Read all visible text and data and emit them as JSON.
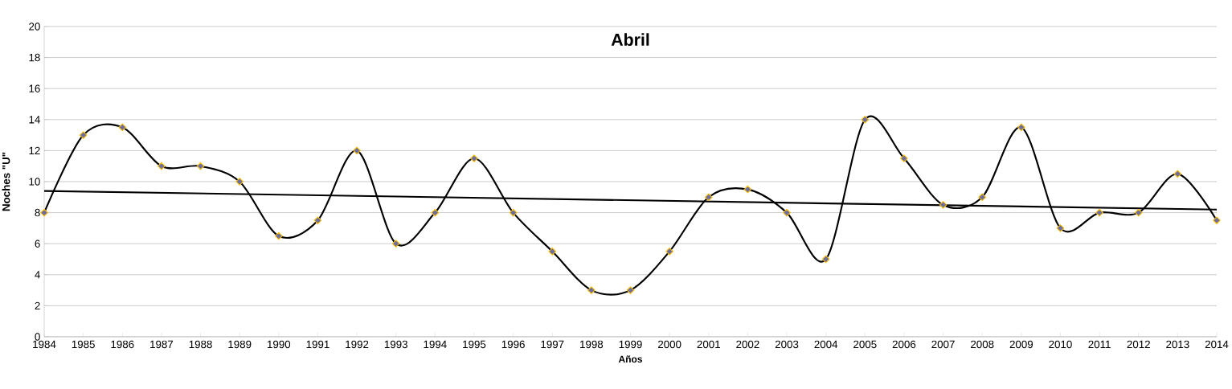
{
  "chart_data": {
    "type": "line",
    "title": "Abril",
    "xlabel": "Años",
    "ylabel": "Noches \"U\"",
    "xlim": [
      1984,
      2014
    ],
    "xticks": [
      1984,
      1985,
      1986,
      1987,
      1988,
      1989,
      1990,
      1991,
      1992,
      1993,
      1994,
      1995,
      1996,
      1997,
      1998,
      1999,
      2000,
      2001,
      2002,
      2003,
      2004,
      2005,
      2006,
      2007,
      2008,
      2009,
      2010,
      2011,
      2012,
      2013,
      2014
    ],
    "ylim": [
      0,
      20
    ],
    "yticks": [
      0,
      2,
      4,
      6,
      8,
      10,
      12,
      14,
      16,
      18,
      20
    ],
    "grid": "y",
    "marker": "diamond",
    "x": [
      1984,
      1985,
      1986,
      1987,
      1988,
      1989,
      1990,
      1991,
      1992,
      1993,
      1994,
      1995,
      1996,
      1997,
      1998,
      1999,
      2000,
      2001,
      2002,
      2003,
      2004,
      2005,
      2006,
      2007,
      2008,
      2009,
      2010,
      2011,
      2012,
      2013,
      2014
    ],
    "series": [
      {
        "color": "#000000",
        "values": [
          8,
          13,
          13.5,
          11,
          11,
          10,
          6.5,
          7.5,
          12,
          6,
          8,
          11.5,
          8,
          5.5,
          3,
          3,
          5.5,
          9,
          9.5,
          8,
          5,
          14,
          11.5,
          8.5,
          9,
          13.5,
          7,
          8,
          8,
          10.5,
          7.5
        ]
      },
      {
        "type": "line",
        "marker": "none",
        "color": "#000000",
        "x": [
          1984,
          2014
        ],
        "values": [
          9.4,
          8.2
        ]
      }
    ]
  }
}
